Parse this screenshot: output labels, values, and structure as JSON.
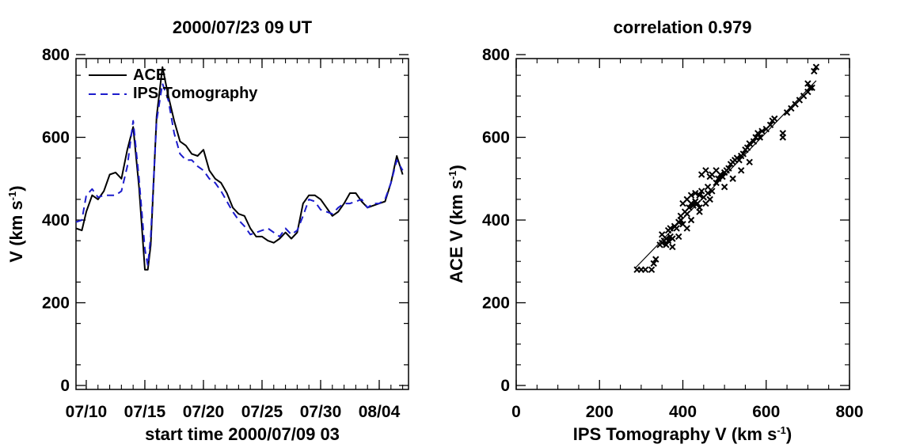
{
  "chart_data": [
    {
      "type": "line",
      "title": "2000/07/23 09 UT",
      "xlabel": "start time 2000/07/09 03",
      "ylabel_text": "V (km s",
      "ylabel_sup": "-1",
      "ylabel_close": ")",
      "xlim": [
        "2000-07-09 03:00",
        "2000-08-06 12:00"
      ],
      "ylim": [
        0,
        800
      ],
      "xticks": [
        "07/10",
        "07/15",
        "07/20",
        "07/25",
        "07/30",
        "08/04"
      ],
      "yticks": [
        "0",
        "200",
        "400",
        "600",
        "800"
      ],
      "legend_position": "top-left",
      "series": [
        {
          "name": "ACE",
          "color": "#000000",
          "style": "solid",
          "x": [
            "2000-07-09 03:00",
            "2000-07-09 15:00",
            "2000-07-10 00:00",
            "2000-07-10 12:00",
            "2000-07-11 00:00",
            "2000-07-11 12:00",
            "2000-07-12 00:00",
            "2000-07-12 12:00",
            "2000-07-13 00:00",
            "2000-07-13 12:00",
            "2000-07-14 00:00",
            "2000-07-14 12:00",
            "2000-07-15 00:00",
            "2000-07-15 06:00",
            "2000-07-15 12:00",
            "2000-07-16 00:00",
            "2000-07-16 12:00",
            "2000-07-17 00:00",
            "2000-07-17 12:00",
            "2000-07-18 00:00",
            "2000-07-18 12:00",
            "2000-07-19 00:00",
            "2000-07-19 12:00",
            "2000-07-20 00:00",
            "2000-07-20 12:00",
            "2000-07-21 00:00",
            "2000-07-21 12:00",
            "2000-07-22 00:00",
            "2000-07-22 12:00",
            "2000-07-23 00:00",
            "2000-07-23 12:00",
            "2000-07-24 00:00",
            "2000-07-24 12:00",
            "2000-07-25 00:00",
            "2000-07-25 12:00",
            "2000-07-26 00:00",
            "2000-07-26 12:00",
            "2000-07-27 00:00",
            "2000-07-27 12:00",
            "2000-07-28 00:00",
            "2000-07-28 12:00",
            "2000-07-29 00:00",
            "2000-07-29 12:00",
            "2000-07-30 00:00",
            "2000-07-30 12:00",
            "2000-07-31 00:00",
            "2000-07-31 12:00",
            "2000-08-01 00:00",
            "2000-08-01 12:00",
            "2000-08-02 00:00",
            "2000-08-02 12:00",
            "2000-08-03 00:00",
            "2000-08-03 12:00",
            "2000-08-04 00:00",
            "2000-08-04 12:00",
            "2000-08-05 00:00",
            "2000-08-05 12:00",
            "2000-08-06 00:00"
          ],
          "y": [
            380,
            375,
            420,
            460,
            450,
            470,
            510,
            515,
            500,
            570,
            625,
            480,
            280,
            280,
            340,
            650,
            770,
            700,
            640,
            590,
            580,
            560,
            555,
            570,
            520,
            500,
            490,
            465,
            430,
            415,
            410,
            380,
            360,
            360,
            350,
            345,
            355,
            370,
            355,
            370,
            440,
            460,
            460,
            450,
            430,
            410,
            420,
            440,
            465,
            465,
            445,
            430,
            435,
            440,
            445,
            490,
            555,
            510
          ]
        },
        {
          "name": "IPS Tomography",
          "color": "#1c1ccc",
          "style": "dashed",
          "x": [
            "2000-07-09 03:00",
            "2000-07-09 15:00",
            "2000-07-10 00:00",
            "2000-07-10 12:00",
            "2000-07-11 00:00",
            "2000-07-11 12:00",
            "2000-07-12 00:00",
            "2000-07-12 12:00",
            "2000-07-13 00:00",
            "2000-07-13 12:00",
            "2000-07-14 00:00",
            "2000-07-14 12:00",
            "2000-07-15 00:00",
            "2000-07-15 06:00",
            "2000-07-15 12:00",
            "2000-07-16 00:00",
            "2000-07-16 12:00",
            "2000-07-17 00:00",
            "2000-07-17 12:00",
            "2000-07-18 00:00",
            "2000-07-18 12:00",
            "2000-07-19 00:00",
            "2000-07-19 12:00",
            "2000-07-20 00:00",
            "2000-07-20 12:00",
            "2000-07-21 00:00",
            "2000-07-21 12:00",
            "2000-07-22 00:00",
            "2000-07-22 12:00",
            "2000-07-23 00:00",
            "2000-07-23 12:00",
            "2000-07-24 00:00",
            "2000-07-24 12:00",
            "2000-07-25 00:00",
            "2000-07-25 12:00",
            "2000-07-26 00:00",
            "2000-07-26 12:00",
            "2000-07-27 00:00",
            "2000-07-27 12:00",
            "2000-07-28 00:00",
            "2000-07-28 12:00",
            "2000-07-29 00:00",
            "2000-07-29 12:00",
            "2000-07-30 00:00",
            "2000-07-30 12:00",
            "2000-07-31 00:00",
            "2000-07-31 12:00",
            "2000-08-01 00:00",
            "2000-08-01 12:00",
            "2000-08-02 00:00",
            "2000-08-02 12:00",
            "2000-08-03 00:00",
            "2000-08-03 12:00",
            "2000-08-04 00:00",
            "2000-08-04 12:00",
            "2000-08-05 00:00",
            "2000-08-05 12:00",
            "2000-08-06 00:00"
          ],
          "y": [
            395,
            400,
            460,
            475,
            455,
            460,
            460,
            460,
            470,
            530,
            640,
            500,
            330,
            290,
            360,
            640,
            730,
            690,
            610,
            560,
            545,
            545,
            530,
            520,
            500,
            490,
            470,
            445,
            420,
            400,
            385,
            365,
            370,
            375,
            380,
            370,
            360,
            380,
            365,
            375,
            410,
            450,
            445,
            425,
            420,
            415,
            430,
            440,
            440,
            445,
            450,
            430,
            440,
            440,
            450,
            490,
            545,
            520
          ]
        }
      ]
    },
    {
      "type": "scatter",
      "title": "correlation 0.979",
      "xlabel_text": "IPS Tomography V (km s",
      "xlabel_sup": "-1",
      "xlabel_close": ")",
      "ylabel_text": "ACE V (km s",
      "ylabel_sup": "-1",
      "ylabel_close": ")",
      "xlim": [
        0,
        800
      ],
      "ylim": [
        0,
        800
      ],
      "xticks": [
        "0",
        "200",
        "400",
        "600",
        "800"
      ],
      "yticks": [
        "0",
        "200",
        "400",
        "600",
        "800"
      ],
      "marker": "x",
      "points": [
        [
          290,
          280
        ],
        [
          300,
          280
        ],
        [
          310,
          280
        ],
        [
          325,
          280
        ],
        [
          335,
          305
        ],
        [
          330,
          295
        ],
        [
          345,
          340
        ],
        [
          350,
          345
        ],
        [
          355,
          350
        ],
        [
          360,
          355
        ],
        [
          365,
          350
        ],
        [
          370,
          360
        ],
        [
          375,
          355
        ],
        [
          360,
          340
        ],
        [
          350,
          365
        ],
        [
          365,
          375
        ],
        [
          370,
          380
        ],
        [
          380,
          385
        ],
        [
          385,
          380
        ],
        [
          390,
          395
        ],
        [
          395,
          400
        ],
        [
          400,
          390
        ],
        [
          395,
          410
        ],
        [
          405,
          420
        ],
        [
          410,
          415
        ],
        [
          420,
          400
        ],
        [
          415,
          430
        ],
        [
          420,
          440
        ],
        [
          425,
          435
        ],
        [
          430,
          445
        ],
        [
          435,
          440
        ],
        [
          440,
          430
        ],
        [
          420,
          460
        ],
        [
          430,
          465
        ],
        [
          440,
          460
        ],
        [
          445,
          470
        ],
        [
          450,
          455
        ],
        [
          455,
          440
        ],
        [
          460,
          465
        ],
        [
          465,
          450
        ],
        [
          460,
          480
        ],
        [
          470,
          470
        ],
        [
          480,
          490
        ],
        [
          470,
          510
        ],
        [
          465,
          505
        ],
        [
          485,
          500
        ],
        [
          490,
          510
        ],
        [
          495,
          505
        ],
        [
          500,
          515
        ],
        [
          505,
          520
        ],
        [
          510,
          525
        ],
        [
          515,
          535
        ],
        [
          520,
          540
        ],
        [
          525,
          545
        ],
        [
          530,
          550
        ],
        [
          535,
          545
        ],
        [
          540,
          555
        ],
        [
          545,
          560
        ],
        [
          550,
          570
        ],
        [
          555,
          575
        ],
        [
          560,
          585
        ],
        [
          570,
          590
        ],
        [
          575,
          600
        ],
        [
          580,
          610
        ],
        [
          585,
          600
        ],
        [
          590,
          615
        ],
        [
          600,
          620
        ],
        [
          610,
          630
        ],
        [
          615,
          640
        ],
        [
          620,
          645
        ],
        [
          640,
          600
        ],
        [
          640,
          610
        ],
        [
          650,
          660
        ],
        [
          660,
          670
        ],
        [
          670,
          680
        ],
        [
          680,
          690
        ],
        [
          690,
          700
        ],
        [
          700,
          710
        ],
        [
          705,
          720
        ],
        [
          700,
          730
        ],
        [
          710,
          720
        ],
        [
          715,
          760
        ],
        [
          720,
          770
        ],
        [
          500,
          480
        ],
        [
          520,
          500
        ],
        [
          540,
          520
        ],
        [
          560,
          540
        ],
        [
          480,
          520
        ],
        [
          455,
          520
        ],
        [
          440,
          420
        ],
        [
          410,
          380
        ],
        [
          390,
          360
        ],
        [
          375,
          335
        ],
        [
          400,
          440
        ],
        [
          410,
          450
        ],
        [
          445,
          510
        ]
      ],
      "fit_line": {
        "x": [
          285,
          720
        ],
        "y": [
          283,
          737
        ]
      }
    }
  ]
}
